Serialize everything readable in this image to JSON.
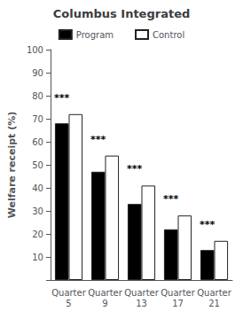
{
  "chart_data": {
    "type": "bar",
    "title": "Columbus Integrated",
    "ylabel": "Welfare receipt (%)",
    "categories": [
      "Quarter\n5",
      "Quarter\n9",
      "Quarter\n13",
      "Quarter\n17",
      "Quarter\n21"
    ],
    "series": [
      {
        "name": "Program",
        "color": "#000000",
        "values": [
          68,
          47,
          33,
          22,
          13
        ]
      },
      {
        "name": "Control",
        "color": "#ffffff",
        "values": [
          72,
          54,
          41,
          28,
          17
        ]
      }
    ],
    "annotations": [
      {
        "text": "***",
        "x": "Quarter\n5",
        "y": 77,
        "series": "Program"
      },
      {
        "text": "***",
        "x": "Quarter\n9",
        "y": 59,
        "series": "Program"
      },
      {
        "text": "***",
        "x": "Quarter\n13",
        "y": 46,
        "series": "Program"
      },
      {
        "text": "***",
        "x": "Quarter\n17",
        "y": 33,
        "series": "Program"
      },
      {
        "text": "***",
        "x": "Quarter\n21",
        "y": 22,
        "series": "Program"
      }
    ],
    "ylim": [
      0,
      100
    ],
    "yticks": [
      {
        "value": 0,
        "label": ""
      },
      10,
      20,
      30,
      40,
      50,
      60,
      70,
      80,
      90,
      100
    ],
    "grid": false,
    "legend": "top"
  }
}
